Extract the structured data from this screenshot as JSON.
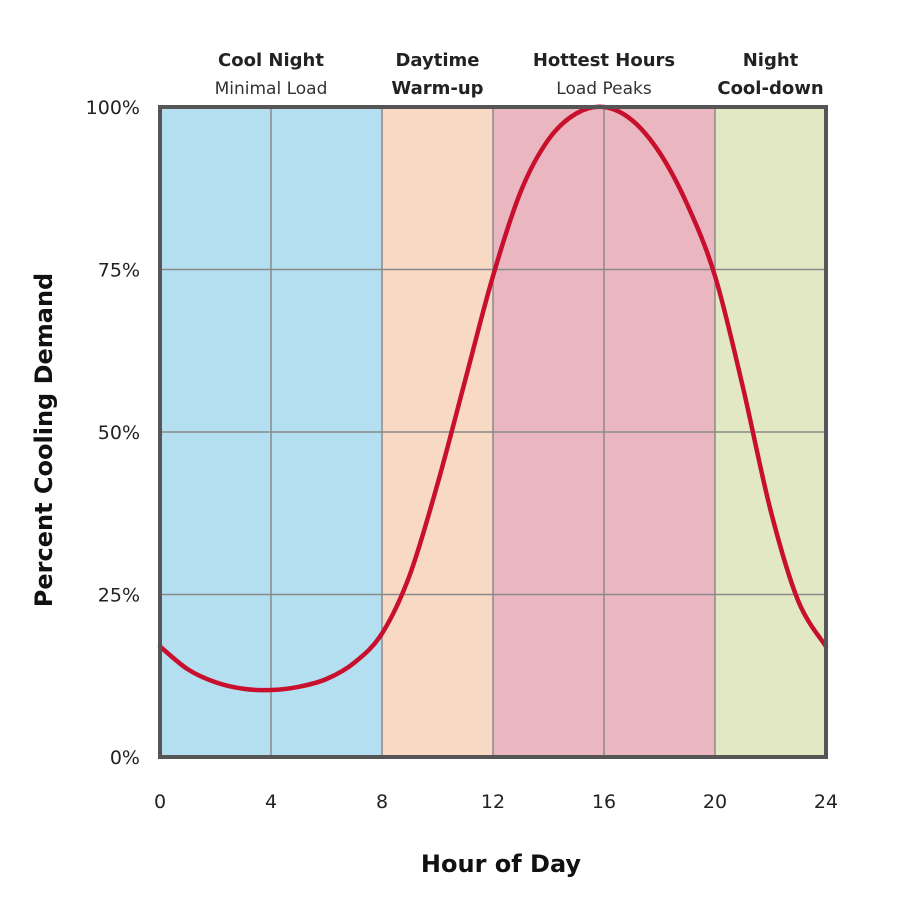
{
  "chart_data": {
    "type": "line",
    "title": "",
    "xlabel": "Hour of Day",
    "ylabel": "Percent Cooling Demand",
    "xlim": [
      0,
      24
    ],
    "ylim": [
      0,
      100
    ],
    "x_ticks": [
      "0",
      "4",
      "8",
      "12",
      "16",
      "20",
      "24"
    ],
    "y_ticks": [
      "0%",
      "25%",
      "50%",
      "75%",
      "100%"
    ],
    "grid": true,
    "bands": [
      {
        "from": 0,
        "to": 8,
        "title": "Cool Night",
        "subtitle": "Minimal Load",
        "color": "#b3dff0"
      },
      {
        "from": 8,
        "to": 12,
        "title": "Daytime",
        "subtitle": "Warm-up",
        "color": "#f8d9c4"
      },
      {
        "from": 12,
        "to": 20,
        "title": "Hottest Hours",
        "subtitle": "Load Peaks",
        "color": "#eab6c0"
      },
      {
        "from": 20,
        "to": 24,
        "title": "Night",
        "subtitle": "Cool-down",
        "color": "#e2e8c3"
      }
    ],
    "series": [
      {
        "color": "#c8102e",
        "x": [
          0,
          1,
          2,
          3,
          4,
          5,
          6,
          7,
          8,
          9,
          10,
          11,
          12,
          13,
          14,
          15,
          16,
          17,
          18,
          19,
          20,
          21,
          22,
          23,
          24
        ],
        "y": [
          17,
          13.5,
          11.5,
          10.5,
          10.3,
          10.8,
          12,
          14.5,
          19,
          28,
          42,
          58,
          74,
          87,
          95,
          99,
          100,
          98,
          93,
          85,
          74,
          57,
          38,
          24,
          17
        ]
      }
    ]
  }
}
